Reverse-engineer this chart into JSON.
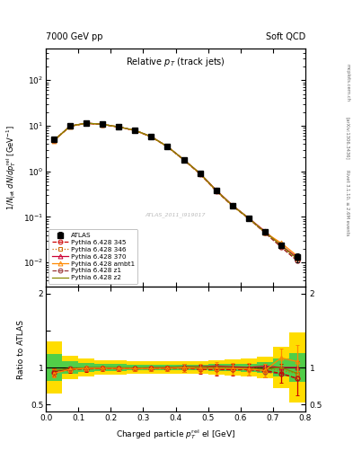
{
  "title_left": "7000 GeV pp",
  "title_right": "Soft QCD",
  "main_title": "Relative p$_{T}$ (track jets)",
  "xlabel": "Charged particle p$_{T}^{rel}$ el [GeV]",
  "ylabel_main": "1/N$_{jet}$ dN/dp$_{T}^{rel}$ el [GeV$^{-1}$]",
  "ylabel_ratio": "Ratio to ATLAS",
  "right_label1": "mcplots.cern.ch",
  "right_label2": "[arXiv:1306.3436]",
  "right_label3": "Rivet 3.1.10, ≥ 2.6M events",
  "watermark": "ATLAS_2011_I919017",
  "xlim": [
    0.0,
    0.8
  ],
  "ylim_main": [
    0.003,
    500
  ],
  "ylim_ratio": [
    0.4,
    2.1
  ],
  "pt_values": [
    0.025,
    0.075,
    0.125,
    0.175,
    0.225,
    0.275,
    0.325,
    0.375,
    0.425,
    0.475,
    0.525,
    0.575,
    0.625,
    0.675,
    0.725,
    0.775
  ],
  "atlas_data": [
    5.0,
    10.0,
    11.5,
    10.8,
    9.5,
    8.0,
    5.8,
    3.5,
    1.8,
    0.9,
    0.38,
    0.18,
    0.095,
    0.048,
    0.024,
    0.013
  ],
  "atlas_err": [
    0.3,
    0.4,
    0.4,
    0.35,
    0.3,
    0.25,
    0.2,
    0.15,
    0.1,
    0.06,
    0.03,
    0.015,
    0.008,
    0.004,
    0.003,
    0.003
  ],
  "py345_data": [
    4.75,
    9.8,
    11.3,
    10.65,
    9.35,
    7.85,
    5.7,
    3.45,
    1.78,
    0.88,
    0.37,
    0.175,
    0.092,
    0.046,
    0.022,
    0.011
  ],
  "py346_data": [
    4.85,
    9.9,
    11.4,
    10.7,
    9.4,
    7.9,
    5.75,
    3.48,
    1.8,
    0.9,
    0.38,
    0.178,
    0.094,
    0.047,
    0.023,
    0.012
  ],
  "py370_data": [
    4.8,
    9.85,
    11.45,
    10.75,
    9.42,
    7.92,
    5.78,
    3.5,
    1.82,
    0.91,
    0.39,
    0.182,
    0.095,
    0.049,
    0.024,
    0.013
  ],
  "pyambt1_data": [
    4.7,
    9.75,
    11.35,
    10.68,
    9.38,
    7.88,
    5.72,
    3.46,
    1.79,
    0.89,
    0.375,
    0.177,
    0.093,
    0.046,
    0.027,
    0.014
  ],
  "pyz1_data": [
    4.78,
    9.82,
    11.38,
    10.72,
    9.43,
    7.93,
    5.74,
    3.47,
    1.8,
    0.89,
    0.378,
    0.176,
    0.093,
    0.045,
    0.022,
    0.011
  ],
  "pyz2_data": [
    4.82,
    9.88,
    11.42,
    10.76,
    9.46,
    7.96,
    5.77,
    3.49,
    1.81,
    0.905,
    0.382,
    0.179,
    0.094,
    0.047,
    0.024,
    0.012
  ],
  "ratio_345": [
    0.93,
    0.97,
    0.98,
    0.985,
    0.985,
    0.983,
    0.983,
    0.986,
    0.99,
    0.975,
    0.97,
    0.97,
    0.97,
    0.96,
    0.92,
    0.85
  ],
  "ratio_346": [
    0.96,
    0.99,
    0.99,
    0.992,
    0.99,
    0.99,
    0.992,
    0.994,
    1.0,
    1.0,
    1.0,
    0.99,
    0.99,
    0.98,
    0.96,
    0.92
  ],
  "ratio_370": [
    0.95,
    0.98,
    0.995,
    0.995,
    0.992,
    0.99,
    0.997,
    1.0,
    1.01,
    1.01,
    1.02,
    1.01,
    1.0,
    1.02,
    1.0,
    1.0
  ],
  "ratio_ambt1": [
    0.92,
    0.975,
    0.988,
    0.99,
    0.988,
    0.985,
    0.986,
    0.989,
    0.995,
    0.988,
    0.988,
    0.985,
    0.979,
    0.958,
    1.13,
    1.08
  ],
  "ratio_z1": [
    0.945,
    0.982,
    0.99,
    0.993,
    0.993,
    0.992,
    0.99,
    0.992,
    1.0,
    0.99,
    0.995,
    0.978,
    0.978,
    0.938,
    0.917,
    0.85
  ],
  "ratio_z2": [
    0.955,
    0.988,
    0.993,
    0.996,
    0.996,
    0.996,
    0.995,
    0.998,
    1.006,
    1.006,
    1.005,
    0.995,
    0.99,
    0.98,
    1.0,
    0.92
  ],
  "ratio_err_345": [
    0.05,
    0.04,
    0.035,
    0.03,
    0.03,
    0.03,
    0.035,
    0.04,
    0.055,
    0.065,
    0.08,
    0.08,
    0.085,
    0.09,
    0.13,
    0.23
  ],
  "ratio_err_ambt1": [
    0.05,
    0.04,
    0.035,
    0.03,
    0.03,
    0.03,
    0.035,
    0.04,
    0.055,
    0.065,
    0.08,
    0.08,
    0.085,
    0.09,
    0.13,
    0.23
  ],
  "green_band_y1": [
    0.82,
    0.92,
    0.94,
    0.95,
    0.955,
    0.958,
    0.96,
    0.96,
    0.96,
    0.96,
    0.955,
    0.95,
    0.945,
    0.93,
    0.88,
    0.8
  ],
  "green_band_y2": [
    1.18,
    1.08,
    1.06,
    1.05,
    1.045,
    1.042,
    1.04,
    1.04,
    1.04,
    1.04,
    1.045,
    1.05,
    1.055,
    1.07,
    1.12,
    1.2
  ],
  "yellow_band_y1": [
    0.65,
    0.84,
    0.88,
    0.9,
    0.905,
    0.91,
    0.915,
    0.915,
    0.915,
    0.91,
    0.9,
    0.89,
    0.88,
    0.85,
    0.72,
    0.52
  ],
  "yellow_band_y2": [
    1.35,
    1.16,
    1.12,
    1.1,
    1.095,
    1.09,
    1.085,
    1.085,
    1.085,
    1.09,
    1.1,
    1.11,
    1.12,
    1.15,
    1.28,
    1.48
  ],
  "color_345": "#cc0000",
  "color_346": "#cc6600",
  "color_370": "#cc0033",
  "color_ambt1": "#ff8800",
  "color_z1": "#993333",
  "color_z2": "#888800",
  "color_atlas": "#000000",
  "color_green": "#33cc55",
  "color_yellow": "#ffdd00"
}
